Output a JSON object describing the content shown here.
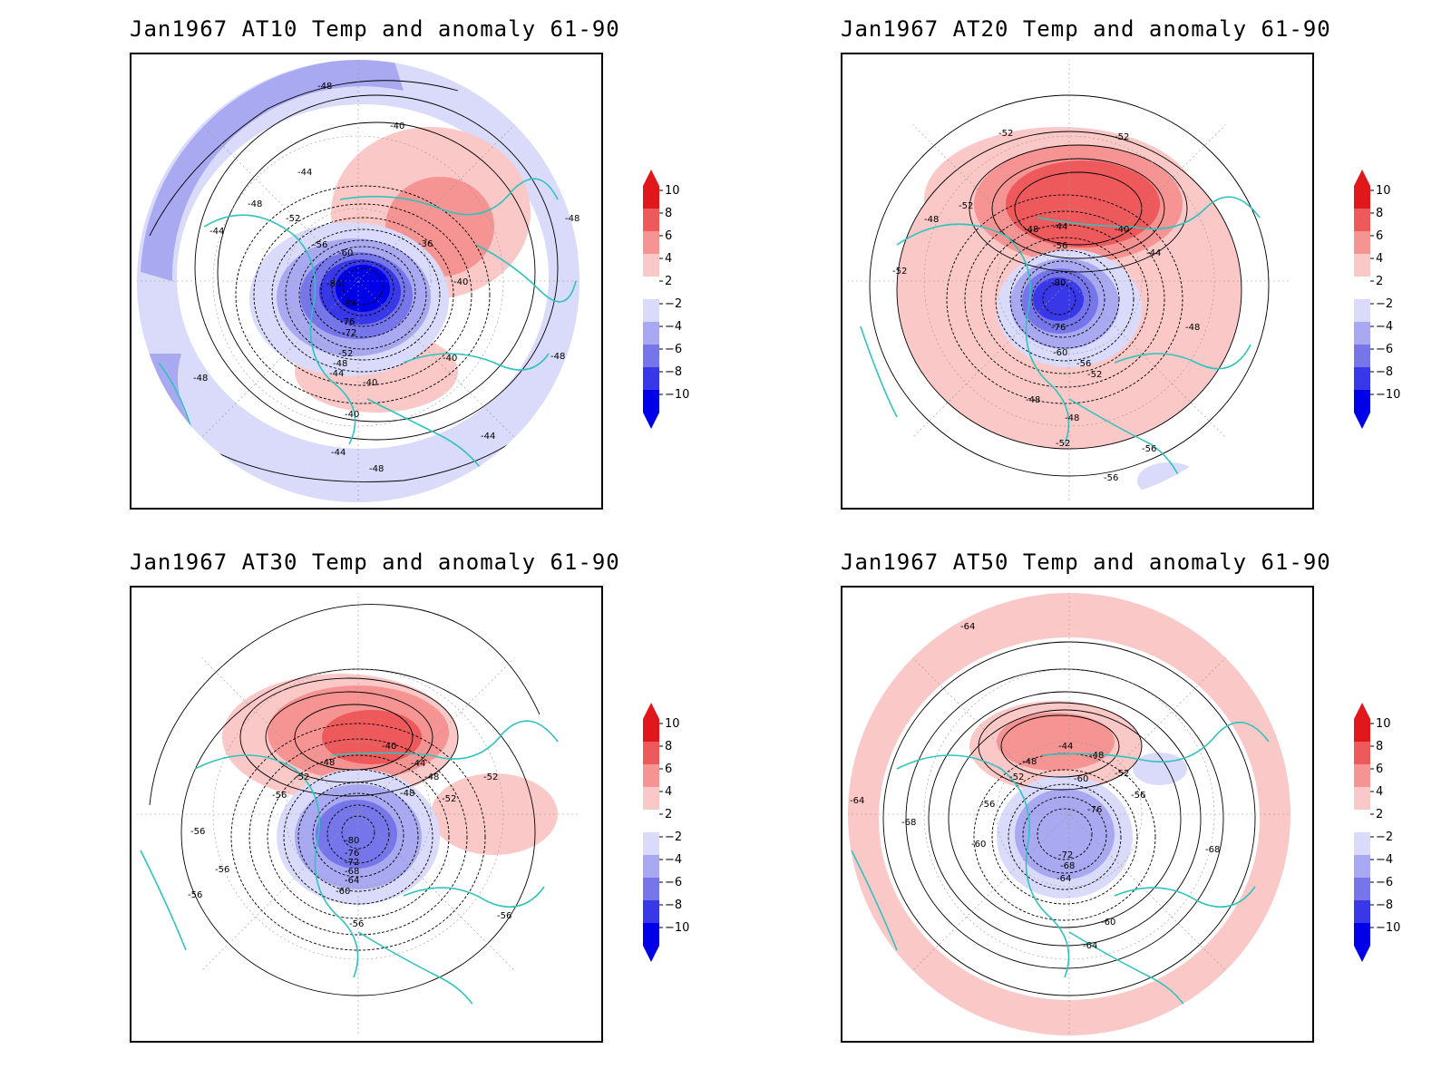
{
  "colorbar": {
    "levels": [
      "10",
      "8",
      "6",
      "4",
      "2",
      "−2",
      "−4",
      "−6",
      "−8",
      "−10"
    ],
    "colors": [
      "#e0181c",
      "#ee5a5c",
      "#f69393",
      "#fbc8c8",
      "#ffffff",
      "#dadafa",
      "#a9a9f2",
      "#7676ea",
      "#3838e8",
      "#0000e8"
    ],
    "top_arrow_color": "#e0181c",
    "bottom_arrow_color": "#0000e8"
  },
  "coast_color": "#2ec4bd",
  "panels": [
    {
      "title": "Jan1967 AT10 Temp and anomaly 61-90",
      "contour_labels": [
        "-48",
        "-40",
        "-44",
        "-48",
        "-52",
        "-44",
        "-56",
        "-60",
        "-36",
        "-40",
        "-80",
        "-84",
        "-76",
        "-72",
        "-52",
        "-48",
        "-44",
        "-40",
        "-40",
        "-40",
        "-48",
        "-48",
        "-44",
        "-44",
        "-48",
        "-48"
      ]
    },
    {
      "title": "Jan1967 AT20 Temp and anomaly 61-90",
      "contour_labels": [
        "-52",
        "-52",
        "-52",
        "-48",
        "-48",
        "-44",
        "-40",
        "-56",
        "-44",
        "-80",
        "-52",
        "-76",
        "-60",
        "-56",
        "-52",
        "-48",
        "-48",
        "-48",
        "-52",
        "-56",
        "-56"
      ]
    },
    {
      "title": "Jan1967 AT30 Temp and anomaly 61-90",
      "contour_labels": [
        "-40",
        "-44",
        "-48",
        "-48",
        "-52",
        "-48",
        "-52",
        "-52",
        "-56",
        "-56",
        "-80",
        "-76",
        "-72",
        "-68",
        "-64",
        "-60",
        "-56",
        "-56",
        "-56",
        "-56"
      ]
    },
    {
      "title": "Jan1967 AT50 Temp and anomaly 61-90",
      "contour_labels": [
        "-64",
        "-44",
        "-48",
        "-48",
        "-52",
        "-60",
        "-52",
        "-56",
        "-56",
        "-64",
        "-68",
        "-60",
        "-76",
        "-72",
        "-68",
        "-64",
        "-60",
        "-68",
        "-64"
      ]
    }
  ]
}
